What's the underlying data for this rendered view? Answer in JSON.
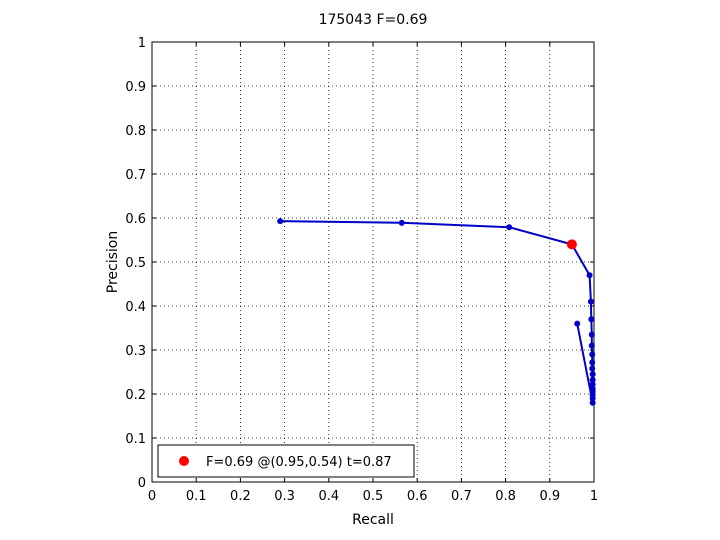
{
  "chart_data": {
    "type": "line",
    "title": "175043 F=0.69",
    "xlabel": "Recall",
    "ylabel": "Precision",
    "xlim": [
      0,
      1
    ],
    "ylim": [
      0,
      1
    ],
    "xticks": [
      "0",
      "0.1",
      "0.2",
      "0.3",
      "0.4",
      "0.5",
      "0.6",
      "0.7",
      "0.8",
      "0.9",
      "1"
    ],
    "yticks": [
      "0",
      "0.1",
      "0.2",
      "0.3",
      "0.4",
      "0.5",
      "0.6",
      "0.7",
      "0.8",
      "0.9",
      "1"
    ],
    "grid": true,
    "series": [
      {
        "color": "#0000c8",
        "x": [
          0.29,
          0.565,
          0.808,
          0.95,
          0.99,
          0.993,
          0.994,
          0.995,
          0.995,
          0.996,
          0.996,
          0.996,
          0.997,
          0.997,
          0.997,
          0.997,
          0.997,
          0.997,
          0.997,
          0.997,
          0.962
        ],
        "y": [
          0.593,
          0.589,
          0.579,
          0.54,
          0.47,
          0.41,
          0.37,
          0.335,
          0.31,
          0.29,
          0.272,
          0.258,
          0.245,
          0.232,
          0.222,
          0.212,
          0.205,
          0.198,
          0.19,
          0.18,
          0.36
        ]
      }
    ],
    "highlight_point": {
      "x": 0.95,
      "y": 0.54,
      "color": "#ff0000"
    },
    "legend": {
      "position": "bottom-left",
      "label": "F=0.69 @(0.95,0.54) t=0.87"
    }
  }
}
